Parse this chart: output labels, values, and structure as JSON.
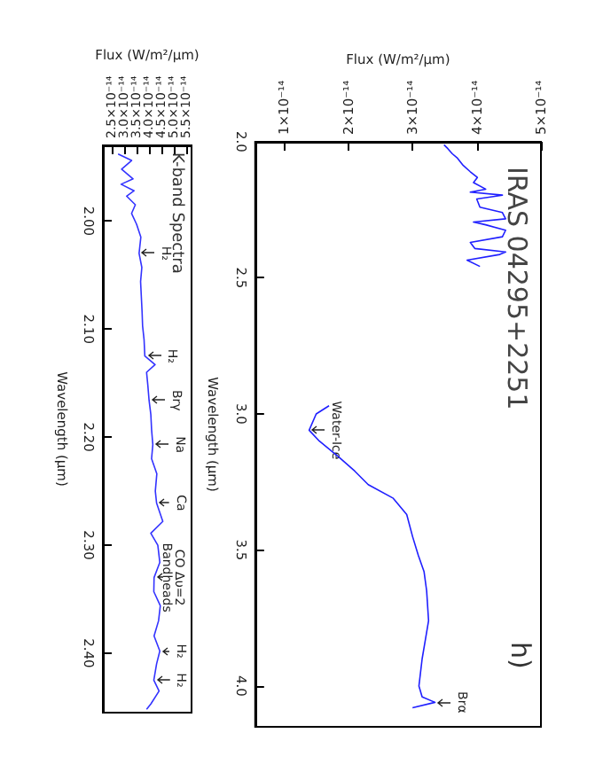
{
  "chart_data": [
    {
      "type": "line",
      "title": "IRAS 04295+2251",
      "xlabel": "Flux (W/m²/µm)",
      "ylabel": "Wavelength (µm)",
      "series": [
        {
          "color": "#1f1fff",
          "x": [
            3.49e-14,
            3.55e-14,
            3.62e-14,
            3.7e-14,
            3.79e-14,
            3.9e-14,
            4.01e-14,
            3.95e-14,
            4.14e-14,
            3.9e-14,
            4.4e-14,
            4e-14,
            4.05e-14,
            4.4e-14,
            4.45e-14,
            3.95e-14,
            4.14e-14,
            4.45e-14,
            4.4e-14,
            3.9e-14,
            3.97e-14,
            4.45e-14,
            4.36e-14,
            3.85e-14,
            4.05e-14
          ],
          "values": [
            2.011,
            2.025,
            2.044,
            2.06,
            2.087,
            2.11,
            2.131,
            2.15,
            2.174,
            2.185,
            2.196,
            2.21,
            2.24,
            2.26,
            2.283,
            2.295,
            2.305,
            2.325,
            2.349,
            2.37,
            2.392,
            2.405,
            2.414,
            2.435,
            2.458
          ]
        },
        {
          "color": "#1f1fff",
          "x": [
            1.7e-14,
            1.5e-14,
            1.39e-14,
            1.55e-14,
            1.86e-14,
            2.1e-14,
            2.31e-14,
            2.7e-14,
            2.91e-14,
            3e-14,
            3.09e-14,
            3.18e-14,
            3.22e-14,
            3.25e-14,
            3.2e-14,
            3.15e-14,
            3.1e-14,
            3.15e-14,
            3.35e-14,
            3e-14
          ],
          "values": [
            2.97,
            3.0,
            3.06,
            3.1,
            3.16,
            3.21,
            3.26,
            3.31,
            3.37,
            3.45,
            3.52,
            3.58,
            3.65,
            3.76,
            3.83,
            3.9,
            4.0,
            4.04,
            4.06,
            4.08
          ]
        }
      ],
      "xlim": [
        5.5e-15,
        5e-14
      ],
      "xticks": [
        {
          "value": 1e-14,
          "label": "1×10⁻¹⁴"
        },
        {
          "value": 2e-14,
          "label": "2×10⁻¹⁴"
        },
        {
          "value": 3e-14,
          "label": "3×10⁻¹⁴"
        },
        {
          "value": 4e-14,
          "label": "4×10⁻¹⁴"
        },
        {
          "value": 5e-14,
          "label": "5×10⁻¹⁴"
        }
      ],
      "ylim": [
        4.15,
        2.0
      ],
      "yticks": [
        {
          "value": 2.0,
          "label": "2.0"
        },
        2.5,
        {
          "value": 3.0,
          "label": "3.0"
        },
        3.5,
        {
          "value": 4.0,
          "label": "4.0"
        }
      ],
      "annotations": [
        "h)",
        {
          "text": "Water-Ice",
          "x": 1.39e-14,
          "y": 3.06
        },
        {
          "text": "Brα",
          "x": 3.35e-14,
          "y": 4.06
        }
      ]
    },
    {
      "type": "line",
      "xlabel": "Flux (W/m²/µm)",
      "ylabel": "Wavelength (µm)",
      "series": [
        {
          "color": "#3333ff",
          "x": [
            2.76e-14,
            3.3e-14,
            2.9e-14,
            3.36e-14,
            2.88e-14,
            3.4e-14,
            3.1e-14,
            3.45e-14,
            3.3e-14,
            3.5e-14,
            3.67e-14,
            3.6e-14,
            3.71e-14,
            3.66e-14,
            3.69e-14,
            3.72e-14,
            3.74e-14,
            3.8e-14,
            3.83e-14,
            4.24e-14,
            3.9e-14,
            3.95e-14,
            4e-14,
            4.07e-14,
            4.1e-14,
            4.15e-14,
            4.1e-14,
            4.31e-14,
            4.25e-14,
            4.3e-14,
            4.55e-14,
            4.07e-14,
            4.35e-14,
            4.43e-14,
            4.2e-14,
            4.19e-14,
            4.45e-14,
            4.38e-14,
            4.2e-14,
            4.43e-14,
            4.3e-14,
            4.19e-14,
            4.4e-14,
            4.07e-14,
            3.9e-14
          ],
          "values": [
            1.938,
            1.944,
            1.952,
            1.961,
            1.966,
            1.972,
            1.977,
            1.985,
            1.993,
            2.003,
            2.015,
            2.03,
            2.043,
            2.056,
            2.07,
            2.084,
            2.097,
            2.11,
            2.125,
            2.133,
            2.14,
            2.152,
            2.166,
            2.179,
            2.193,
            2.207,
            2.22,
            2.234,
            2.25,
            2.261,
            2.278,
            2.289,
            2.3,
            2.316,
            2.33,
            2.343,
            2.356,
            2.37,
            2.384,
            2.398,
            2.41,
            2.425,
            2.435,
            2.447,
            2.452
          ]
        }
      ],
      "xlim": [
        2.15e-14,
        5.7e-14
      ],
      "xticks": [
        {
          "value": 2.5e-14,
          "label": "2.5×10⁻¹⁴"
        },
        {
          "value": 3e-14,
          "label": "3.0×10⁻¹⁴"
        },
        {
          "value": 3.5e-14,
          "label": "3.5×10⁻¹⁴"
        },
        {
          "value": 4e-14,
          "label": "4.0×10⁻¹⁴"
        },
        {
          "value": 4.5e-14,
          "label": "4.5×10⁻¹⁴"
        },
        {
          "value": 5e-14,
          "label": "5.0×10⁻¹⁴"
        },
        {
          "value": 5.5e-14,
          "label": "5.5×10⁻¹⁴"
        }
      ],
      "ylim": [
        2.455,
        1.93
      ],
      "yticks": [
        {
          "value": 2.0,
          "label": "2.00"
        },
        {
          "value": 2.1,
          "label": "2.10"
        },
        {
          "value": 2.2,
          "label": "2.20"
        },
        {
          "value": 2.3,
          "label": "2.30"
        },
        {
          "value": 2.4,
          "label": "2.40"
        }
      ],
      "annotations": [
        "K-band Spectra",
        {
          "text": "H₂",
          "x": 3.6e-14,
          "y": 2.03
        },
        {
          "text": "H₂",
          "x": 3.83e-14,
          "y": 2.125
        },
        {
          "text": "Brγ",
          "x": 4e-14,
          "y": 2.166
        },
        {
          "text": "Na",
          "x": 4.15e-14,
          "y": 2.207
        },
        {
          "text": "Ca",
          "x": 4.3e-14,
          "y": 2.261
        },
        {
          "text": "CO Δυ=2\nBandheads",
          "x": 4.2e-14,
          "y": 2.33
        },
        {
          "text": "H₂",
          "x": 4.43e-14,
          "y": 2.398
        },
        {
          "text": "H₂",
          "x": 4.19e-14,
          "y": 2.425
        }
      ]
    }
  ]
}
